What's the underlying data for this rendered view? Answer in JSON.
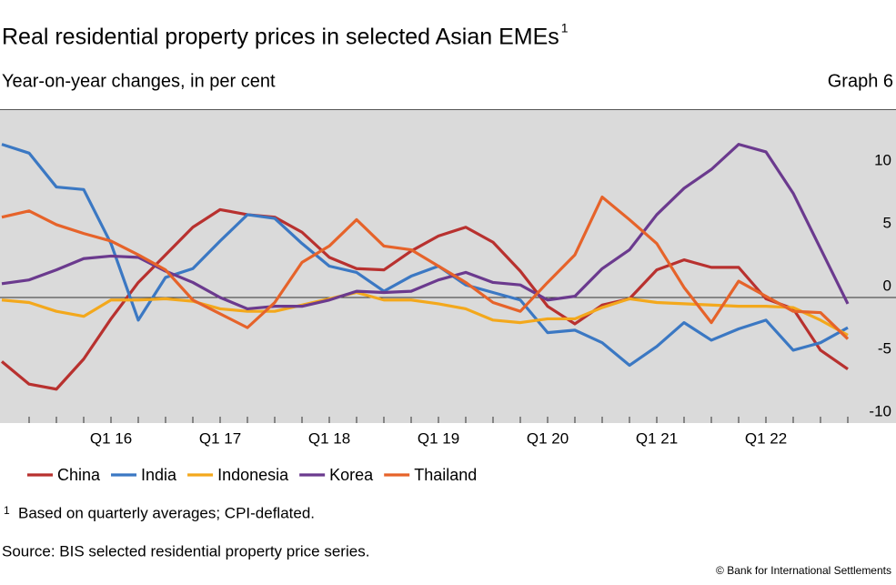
{
  "chart_data": {
    "type": "line",
    "title": "Real residential property prices in selected Asian EMEs",
    "title_note": "1",
    "subtitle": "Year-on-year changes, in per cent",
    "graph_label": "Graph 6",
    "footnote_marker": "1",
    "footnote": "Based on quarterly averages; CPI-deflated.",
    "source": "Source: BIS selected residential property price series.",
    "copyright": "© Bank for International Settlements",
    "categories": [
      null,
      null,
      null,
      null,
      "Q1 16",
      null,
      null,
      null,
      "Q1 17",
      null,
      null,
      null,
      "Q1 18",
      null,
      null,
      null,
      "Q1 19",
      null,
      null,
      null,
      "Q1 20",
      null,
      null,
      null,
      "Q1 21",
      null,
      null,
      null,
      "Q1 22",
      null,
      null,
      null
    ],
    "ylim": [
      -10,
      15
    ],
    "yticks": [
      -10,
      -5,
      0,
      5,
      10
    ],
    "grid": false,
    "series": [
      {
        "name": "China",
        "color": "#b8312f",
        "values": [
          -5.1,
          -6.9,
          -7.3,
          -4.9,
          -1.7,
          1.2,
          3.4,
          5.6,
          7.0,
          6.6,
          6.4,
          5.2,
          3.2,
          2.3,
          2.2,
          3.7,
          4.9,
          5.6,
          4.4,
          2.1,
          -0.7,
          -2.1,
          -0.6,
          -0.1,
          2.2,
          3.0,
          2.4,
          2.4,
          -0.1,
          -0.9,
          -4.2,
          -5.7
        ]
      },
      {
        "name": "India",
        "color": "#3b78c3",
        "values": [
          12.2,
          11.5,
          8.8,
          8.6,
          4.3,
          -1.8,
          1.6,
          2.3,
          4.5,
          6.6,
          6.3,
          4.3,
          2.5,
          2.0,
          0.5,
          1.7,
          2.5,
          1.0,
          0.4,
          -0.2,
          -2.8,
          -2.6,
          -3.6,
          -5.4,
          -3.9,
          -2.0,
          -3.4,
          -2.5,
          -1.8,
          -4.2,
          -3.6,
          -2.4
        ]
      },
      {
        "name": "Indonesia",
        "color": "#f3a81c",
        "values": [
          -0.2,
          -0.4,
          -1.1,
          -1.5,
          -0.2,
          -0.2,
          -0.1,
          -0.3,
          -0.9,
          -1.1,
          -1.1,
          -0.6,
          -0.1,
          0.4,
          -0.2,
          -0.2,
          -0.5,
          -0.9,
          -1.8,
          -2.0,
          -1.7,
          -1.7,
          -0.8,
          -0.1,
          -0.4,
          -0.5,
          -0.6,
          -0.7,
          -0.7,
          -0.8,
          -1.8,
          -3.0
        ]
      },
      {
        "name": "Korea",
        "color": "#6b3a8e",
        "values": [
          1.1,
          1.4,
          2.2,
          3.1,
          3.3,
          3.2,
          2.1,
          1.2,
          0.0,
          -0.9,
          -0.7,
          -0.7,
          -0.2,
          0.5,
          0.4,
          0.5,
          1.4,
          2.0,
          1.2,
          1.0,
          -0.2,
          0.1,
          2.3,
          3.8,
          6.6,
          8.7,
          10.2,
          12.2,
          11.6,
          8.3,
          3.9,
          -0.5
        ]
      },
      {
        "name": "Thailand",
        "color": "#e6632a",
        "values": [
          6.4,
          6.9,
          5.8,
          5.1,
          4.5,
          3.4,
          2.2,
          -0.2,
          -1.3,
          -2.4,
          -0.4,
          2.8,
          4.1,
          6.2,
          4.1,
          3.8,
          2.5,
          1.2,
          -0.4,
          -1.1,
          1.2,
          3.4,
          8.0,
          6.2,
          4.3,
          0.8,
          -2.0,
          1.3,
          0.1,
          -1.1,
          -1.2,
          -3.3
        ]
      }
    ]
  }
}
